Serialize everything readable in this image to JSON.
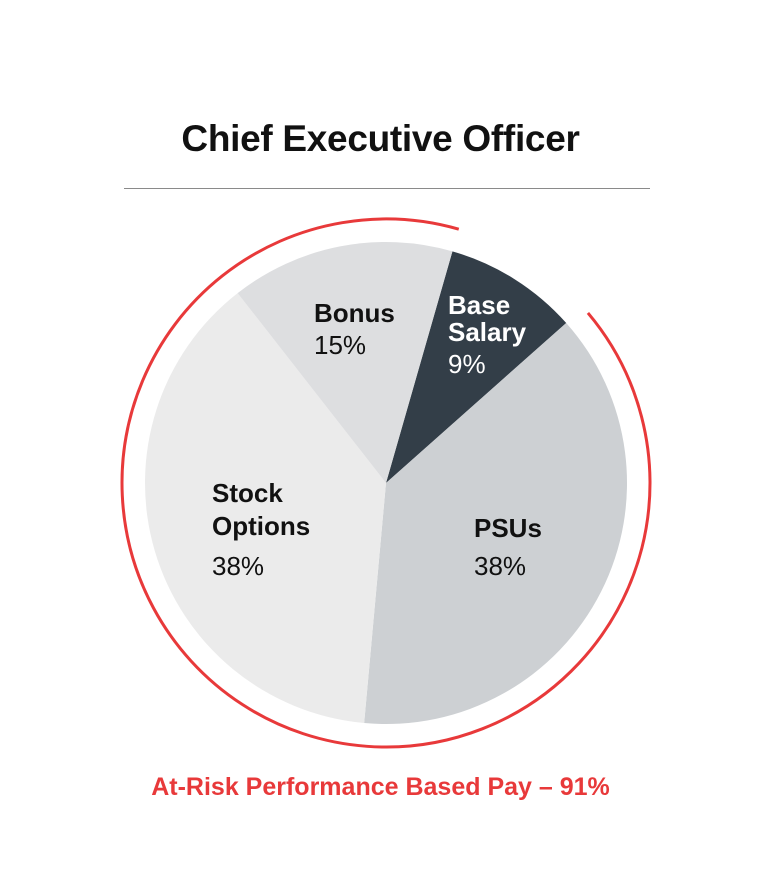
{
  "title": "Chief Executive Officer",
  "footer": "At-Risk Performance Based Pay – 91%",
  "colors": {
    "base_salary": "#333e48",
    "psus": "#cdd0d3",
    "stock_options": "#ebebeb",
    "bonus": "#dddee0",
    "accent_arc": "#e8393a"
  },
  "slices": [
    {
      "label": "Base Salary",
      "label_line1": "Base",
      "label_line2": "Salary",
      "pct_text": "9%",
      "value": 9
    },
    {
      "label": "PSUs",
      "pct_text": "38%",
      "value": 38
    },
    {
      "label": "Stock Options",
      "label_line1": "Stock",
      "label_line2": "Options",
      "pct_text": "38%",
      "value": 38
    },
    {
      "label": "Bonus",
      "pct_text": "15%",
      "value": 15
    }
  ],
  "chart_data": {
    "type": "pie",
    "title": "Chief Executive Officer",
    "categories": [
      "Base Salary",
      "PSUs",
      "Stock Options",
      "Bonus"
    ],
    "values": [
      9,
      38,
      38,
      15
    ],
    "unit": "%",
    "annotations": [
      "At-Risk Performance Based Pay – 91%"
    ],
    "highlight_arc": {
      "covers": [
        "PSUs",
        "Stock Options",
        "Bonus"
      ],
      "total": 91,
      "color": "#e8393a"
    },
    "legend": "none (inline labels)"
  }
}
